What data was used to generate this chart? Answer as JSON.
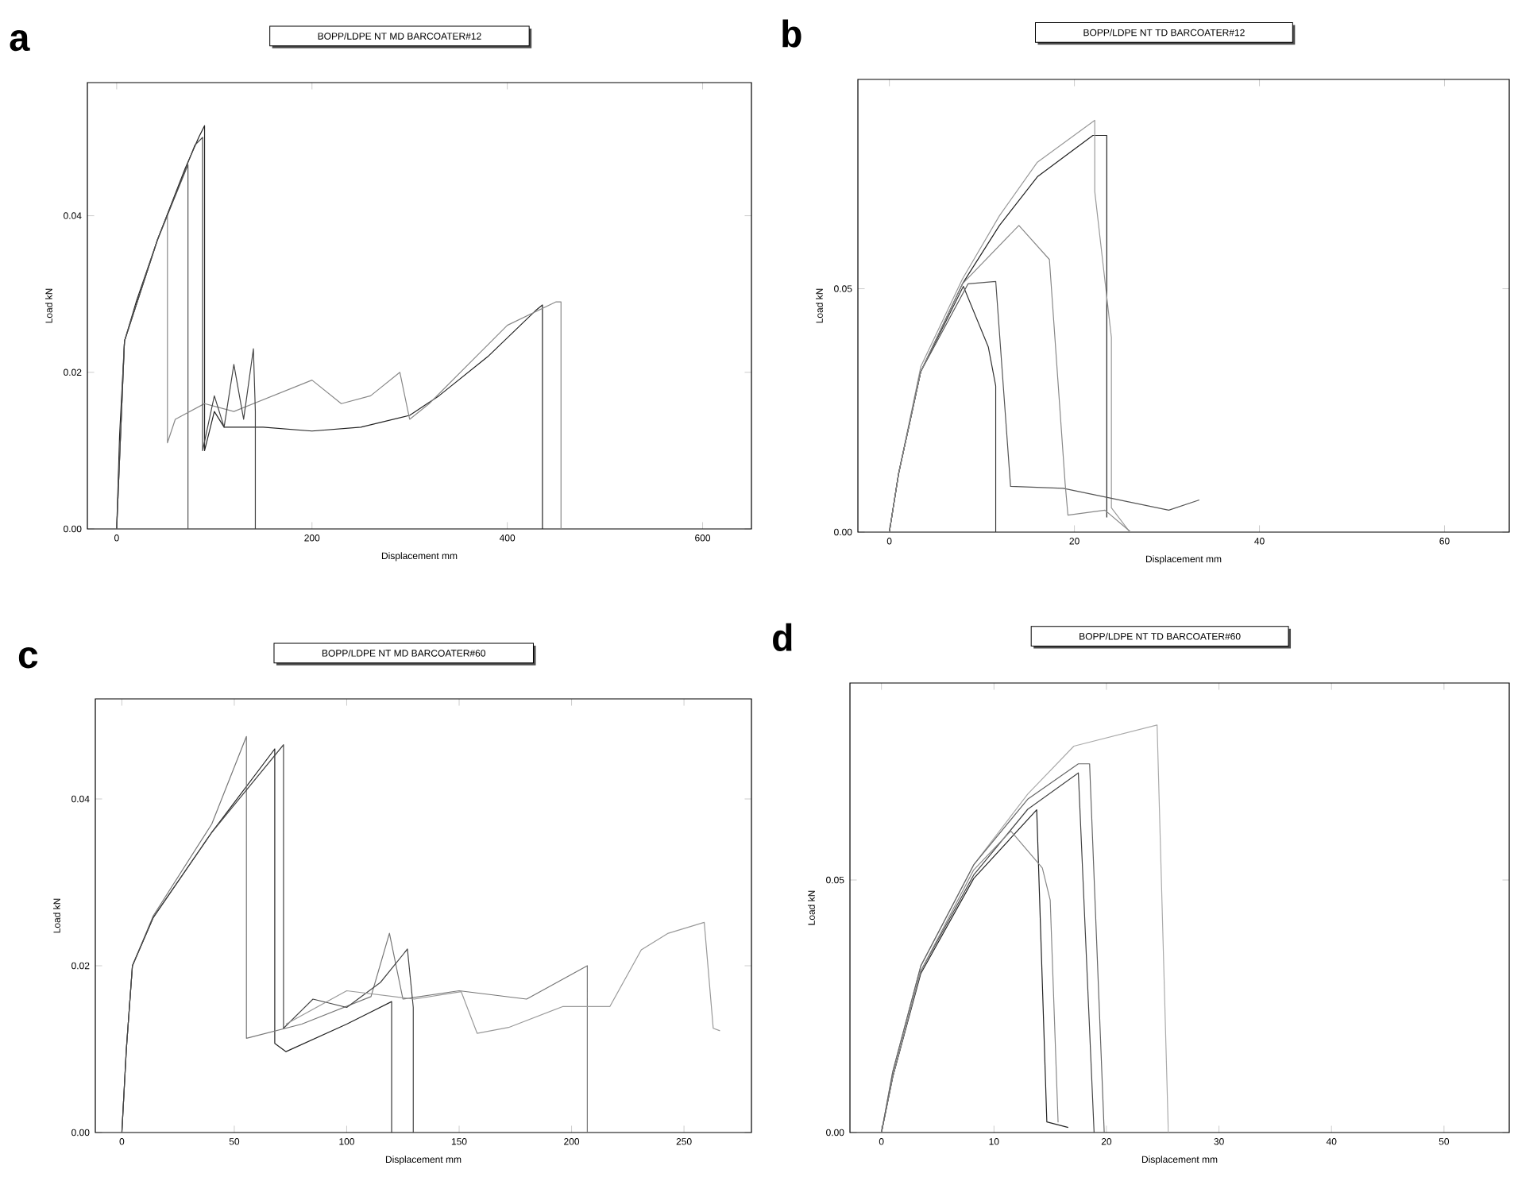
{
  "chart_data": [
    {
      "type": "line",
      "title": "BOPP/LDPE NT MD BARCOATER#12",
      "xlabel": "Displacement mm",
      "ylabel": "Load kN",
      "annotations": [
        "a"
      ],
      "xlim": [
        -30,
        650
      ],
      "ylim": [
        0,
        0.057
      ],
      "xticks": [
        0,
        200,
        400,
        600
      ],
      "yticks": [
        {
          "value": 0,
          "label": "0.00"
        },
        {
          "value": 0.02,
          "label": "0.02"
        },
        {
          "value": 0.04,
          "label": "0.04"
        }
      ],
      "series": [
        {
          "color": "#222222",
          "x": [
            0,
            3,
            8,
            20,
            42,
            70,
            84,
            90,
            90,
            100,
            110,
            150,
            200,
            250,
            300,
            330,
            380,
            430,
            436,
            436
          ],
          "values": [
            0,
            0.012,
            0.024,
            0.029,
            0.037,
            0.046,
            0.05,
            0.0515,
            0.01,
            0.015,
            0.013,
            0.013,
            0.0125,
            0.013,
            0.0145,
            0.017,
            0.022,
            0.028,
            0.0286,
            0
          ]
        },
        {
          "color": "#555555",
          "x": [
            0,
            8,
            42,
            73,
            73
          ],
          "values": [
            0,
            0.024,
            0.037,
            0.0465,
            0
          ]
        },
        {
          "color": "#888888",
          "x": [
            0,
            8,
            42,
            52,
            52,
            60,
            90,
            120,
            160,
            200,
            230,
            260,
            290,
            300,
            320,
            360,
            400,
            450,
            455,
            455
          ],
          "values": [
            0,
            0.024,
            0.037,
            0.04,
            0.011,
            0.014,
            0.016,
            0.015,
            0.017,
            0.019,
            0.016,
            0.017,
            0.02,
            0.014,
            0.016,
            0.021,
            0.026,
            0.029,
            0.029,
            0
          ]
        },
        {
          "color": "#444444",
          "x": [
            0,
            8,
            42,
            80,
            88,
            88,
            100,
            110,
            120,
            130,
            140,
            142,
            142
          ],
          "values": [
            0,
            0.024,
            0.037,
            0.049,
            0.05,
            0.01,
            0.017,
            0.013,
            0.021,
            0.014,
            0.023,
            0.015,
            0
          ]
        }
      ]
    },
    {
      "type": "line",
      "title": "BOPP/LDPE NT TD BARCOATER#12",
      "xlabel": "Displacement mm",
      "ylabel": "Load kN",
      "annotations": [
        "b"
      ],
      "xlim": [
        -3.4,
        67
      ],
      "ylim": [
        0,
        0.093
      ],
      "xticks": [
        0,
        20,
        40,
        60
      ],
      "yticks": [
        {
          "value": 0,
          "label": "0.00"
        },
        {
          "value": 0.05,
          "label": "0.05"
        }
      ],
      "series": [
        {
          "color": "#222222",
          "x": [
            0,
            1,
            3.4,
            7.9,
            11.9,
            16,
            22,
            23.5,
            23.5
          ],
          "values": [
            0,
            0.012,
            0.033,
            0.051,
            0.063,
            0.073,
            0.0815,
            0.0815,
            0.003
          ]
        },
        {
          "color": "#999999",
          "x": [
            0,
            1,
            3.4,
            7.9,
            11.9,
            16,
            22.2,
            22.2,
            24,
            24,
            26
          ],
          "values": [
            0,
            0.012,
            0.034,
            0.052,
            0.065,
            0.076,
            0.0846,
            0.07,
            0.04,
            0.005,
            0
          ]
        },
        {
          "color": "#333333",
          "x": [
            0,
            1,
            3.4,
            8,
            10.7,
            11.5,
            11.5
          ],
          "values": [
            0,
            0.012,
            0.033,
            0.0505,
            0.038,
            0.03,
            0
          ]
        },
        {
          "color": "#555555",
          "x": [
            0,
            1,
            3.4,
            8.5,
            11.5,
            13.1,
            18.8,
            30.2,
            33.5
          ],
          "values": [
            0,
            0.012,
            0.033,
            0.051,
            0.0515,
            0.0094,
            0.009,
            0.0045,
            0.0066
          ]
        },
        {
          "color": "#888888",
          "x": [
            0,
            1,
            3.4,
            7.9,
            14,
            17.3,
            19,
            19.3,
            23.3,
            26.1
          ],
          "values": [
            0,
            0.012,
            0.033,
            0.051,
            0.063,
            0.056,
            0.01,
            0.0035,
            0.0045,
            0
          ]
        }
      ]
    },
    {
      "type": "line",
      "title": "BOPP/LDPE NT MD BARCOATER#60",
      "xlabel": "Displacement mm",
      "ylabel": "Load kN",
      "annotations": [
        "c"
      ],
      "xlim": [
        -11.8,
        280
      ],
      "ylim": [
        0,
        0.052
      ],
      "xticks": [
        0,
        50,
        100,
        150,
        200,
        250
      ],
      "yticks": [
        {
          "value": 0,
          "label": "0.00"
        },
        {
          "value": 0.02,
          "label": "0.02"
        },
        {
          "value": 0.04,
          "label": "0.04"
        }
      ],
      "series": [
        {
          "color": "#222222",
          "x": [
            0,
            2,
            4.7,
            14,
            40,
            68,
            68,
            73,
            100,
            120,
            120
          ],
          "values": [
            0,
            0.01,
            0.02,
            0.0258,
            0.036,
            0.046,
            0.0107,
            0.0097,
            0.013,
            0.0157,
            0
          ]
        },
        {
          "color": "#777777",
          "x": [
            0,
            2,
            4.7,
            14,
            40,
            55.4,
            55.4,
            80,
            110.8,
            119,
            125,
            150,
            180,
            207,
            207
          ],
          "values": [
            0,
            0.01,
            0.02,
            0.026,
            0.037,
            0.0475,
            0.0113,
            0.013,
            0.0163,
            0.0239,
            0.016,
            0.017,
            0.016,
            0.02,
            0
          ]
        },
        {
          "color": "#444444",
          "x": [
            0,
            2,
            4.7,
            14,
            40,
            71.9,
            71.9,
            85,
            100,
            115,
            127,
            129.6,
            129.6
          ],
          "values": [
            0,
            0.01,
            0.02,
            0.0258,
            0.036,
            0.0465,
            0.0125,
            0.016,
            0.015,
            0.018,
            0.022,
            0.015,
            0
          ]
        },
        {
          "color": "#999999",
          "x": [
            73,
            100,
            130,
            150.9,
            158,
            172,
            196,
            217,
            231,
            243,
            259,
            263,
            266
          ],
          "values": [
            0.013,
            0.017,
            0.016,
            0.0169,
            0.0119,
            0.0126,
            0.0151,
            0.0151,
            0.0219,
            0.0239,
            0.0252,
            0.0125,
            0.0122
          ]
        }
      ]
    },
    {
      "type": "line",
      "title": "BOPP/LDPE NT TD BARCOATER#60",
      "xlabel": "Displacement mm",
      "ylabel": "Load kN",
      "annotations": [
        "d"
      ],
      "xlim": [
        -2.8,
        55.8
      ],
      "ylim": [
        0,
        0.089
      ],
      "xticks": [
        0,
        10,
        20,
        30,
        40,
        50
      ],
      "yticks": [
        {
          "value": 0,
          "label": "0.00"
        },
        {
          "value": 0.05,
          "label": "0.05"
        }
      ],
      "series": [
        {
          "color": "#222222",
          "x": [
            0,
            1,
            3.5,
            8.2,
            13.8,
            14.7,
            16.6
          ],
          "values": [
            0,
            0.011,
            0.0315,
            0.0503,
            0.0639,
            0.0021,
            0.001
          ]
        },
        {
          "color": "#444444",
          "x": [
            0,
            1,
            3.5,
            8.2,
            13,
            17.5,
            18.9
          ],
          "values": [
            0,
            0.011,
            0.032,
            0.051,
            0.064,
            0.0712,
            0
          ]
        },
        {
          "color": "#aaaaaa",
          "x": [
            0,
            1,
            3.5,
            8.2,
            13,
            17.1,
            24.5,
            25.5
          ],
          "values": [
            0,
            0.012,
            0.033,
            0.053,
            0.067,
            0.0765,
            0.0807,
            0
          ]
        },
        {
          "color": "#888888",
          "x": [
            0,
            1,
            3.5,
            8.2,
            11.5,
            14.3,
            15,
            15.7
          ],
          "values": [
            0,
            0.011,
            0.032,
            0.052,
            0.0597,
            0.0524,
            0.046,
            0.002
          ]
        },
        {
          "color": "#666666",
          "x": [
            0,
            1,
            3.5,
            8.2,
            13,
            17.5,
            18.5,
            19.8
          ],
          "values": [
            0,
            0.012,
            0.033,
            0.053,
            0.066,
            0.073,
            0.073,
            0
          ]
        }
      ]
    }
  ]
}
